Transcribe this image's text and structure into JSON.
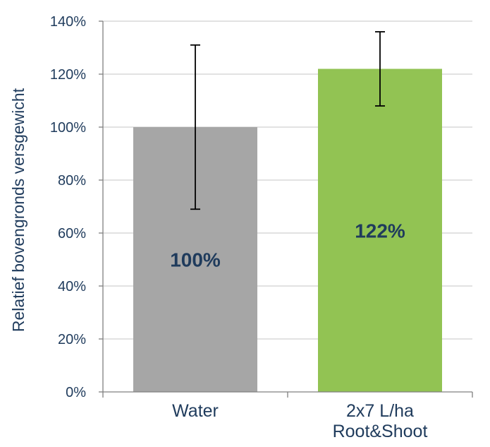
{
  "chart_data": {
    "type": "bar",
    "title": "",
    "ylabel": "Relatief bovengronds versgewicht",
    "xlabel": "",
    "ylim": [
      0,
      140
    ],
    "yticks": [
      0,
      20,
      40,
      60,
      80,
      100,
      120,
      140
    ],
    "ytick_labels": [
      "0%",
      "20%",
      "40%",
      "60%",
      "80%",
      "100%",
      "120%",
      "140%"
    ],
    "grid": true,
    "categories": [
      {
        "label_lines": [
          "Water"
        ]
      },
      {
        "label_lines": [
          "2x7 L/ha",
          "Root&Shoot"
        ]
      }
    ],
    "values": [
      100,
      122
    ],
    "data_labels": [
      "100%",
      "122%"
    ],
    "error_low": [
      69,
      108
    ],
    "error_high": [
      131,
      136
    ],
    "colors": [
      "#a6a6a6",
      "#92c353"
    ],
    "text_color": "#1f3b5c",
    "grid_color": "#d0d0d0"
  }
}
